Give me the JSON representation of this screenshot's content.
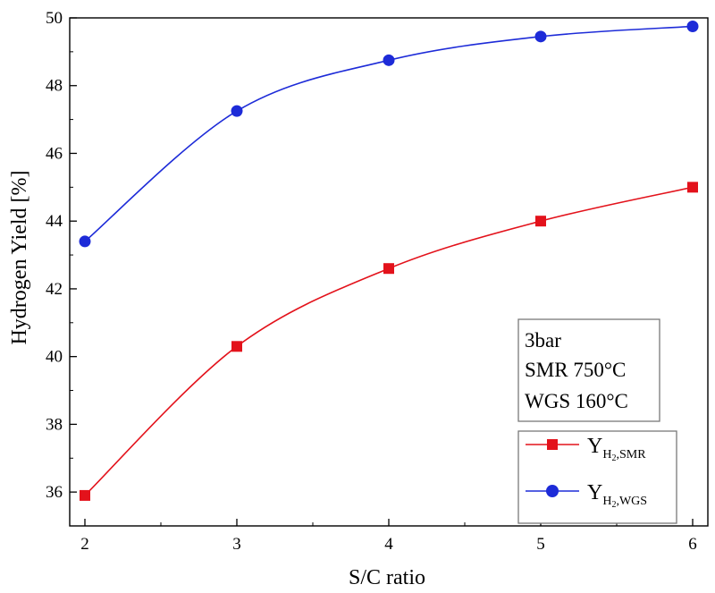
{
  "chart_data": {
    "type": "line",
    "xlabel": "S/C ratio",
    "ylabel": "Hydrogen Yield [%]",
    "xlim": [
      1.9,
      6.1
    ],
    "ylim": [
      35,
      50
    ],
    "x_ticks": [
      "2",
      "3",
      "4",
      "5",
      "6"
    ],
    "y_ticks": [
      "36",
      "38",
      "40",
      "42",
      "44",
      "46",
      "48",
      "50"
    ],
    "grid": false,
    "legend_position": "bottom-right",
    "annotations": [
      "3bar",
      "SMR 750°C",
      "WGS 160°C"
    ],
    "x": [
      2,
      3,
      4,
      5,
      6
    ],
    "series": [
      {
        "name": "Y",
        "name_sub": "H2,SMR",
        "marker": "square",
        "color": "#e3121b",
        "line_color": "#e3121b",
        "values": [
          35.9,
          40.3,
          42.6,
          44.0,
          45.0
        ]
      },
      {
        "name": "Y",
        "name_sub": "H2,WGS",
        "marker": "circle",
        "color": "#1d2bd8",
        "line_color": "#1d2bd8",
        "values": [
          43.4,
          47.25,
          48.75,
          49.45,
          49.75
        ]
      }
    ]
  }
}
